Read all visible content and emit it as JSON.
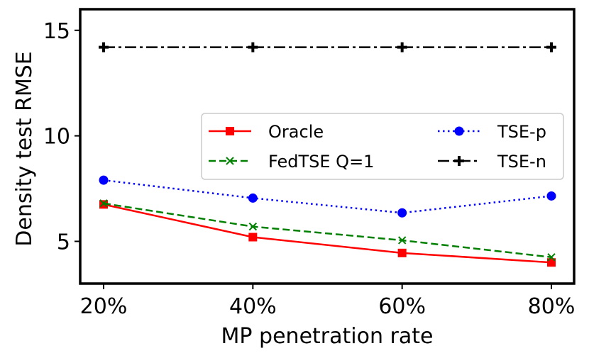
{
  "chart_data": {
    "type": "line",
    "title": "",
    "xlabel": "MP penetration rate",
    "ylabel": "Density test RMSE",
    "categories": [
      "20%",
      "40%",
      "60%",
      "80%"
    ],
    "ylim": [
      3,
      16
    ],
    "yticks": [
      5,
      10,
      15
    ],
    "ytick_labels": [
      "5",
      "10",
      "15"
    ],
    "grid": false,
    "legend_position": "center-right",
    "series": [
      {
        "name": "Oracle",
        "values": [
          6.75,
          5.2,
          4.45,
          4.0
        ],
        "color": "#ff0000",
        "marker": "square",
        "linestyle": "solid"
      },
      {
        "name": "FedTSE Q=1",
        "values": [
          6.8,
          5.7,
          5.05,
          4.25
        ],
        "color": "#008000",
        "marker": "x",
        "linestyle": "dashed"
      },
      {
        "name": "TSE-p",
        "values": [
          7.9,
          7.05,
          6.35,
          7.15
        ],
        "color": "#0000ff",
        "marker": "circle",
        "linestyle": "dotted"
      },
      {
        "name": "TSE-n",
        "values": [
          14.2,
          14.2,
          14.2,
          14.2
        ],
        "color": "#000000",
        "marker": "plus",
        "linestyle": "dashdot"
      }
    ]
  }
}
